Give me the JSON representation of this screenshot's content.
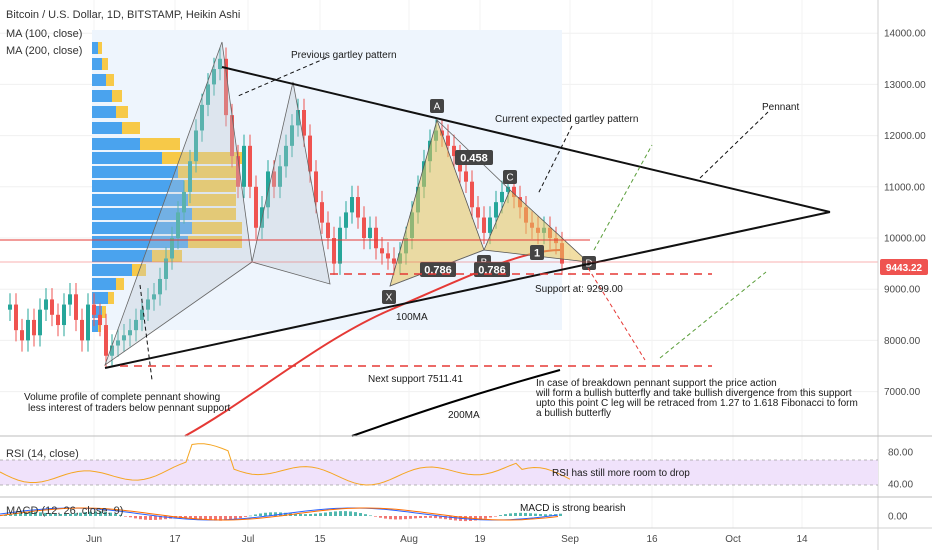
{
  "chart_data": [
    {
      "type": "candlestick",
      "title": "Bitcoin / U.S. Dollar, 1D, BITSTAMP, Heikin Ashi",
      "indicators": [
        "MA (100, close)",
        "MA (200, close)"
      ],
      "x_ticks": [
        "Jun",
        "17",
        "Jul",
        "15",
        "Aug",
        "19",
        "Sep",
        "16",
        "Oct",
        "14"
      ],
      "y_ticks": [
        "14000.00",
        "13000.00",
        "12000.00",
        "11000.00",
        "10000.00",
        "9000.00",
        "8000.00",
        "7000.00"
      ],
      "ylim": [
        6200,
        14600
      ],
      "current_price": 9443.22,
      "current_price_label": "9443.22",
      "key_prices": {
        "support": 9299.0,
        "next_support": 7511.41,
        "resistance_line": 9950,
        "pennant_apex": 10550
      },
      "patterns": {
        "previous_gartley": {
          "label": "Previous gartley pattern"
        },
        "current_gartley": {
          "label": "Current expected gartley pattern",
          "points": [
            {
              "name": "X",
              "price": 8700
            },
            {
              "name": "A",
              "price": 12350
            },
            {
              "name": "B",
              "price": 9800
            },
            {
              "name": "C",
              "price": 11000
            },
            {
              "name": "D",
              "price": 9550
            }
          ],
          "fib_labels": [
            "0.458",
            "0.786",
            "0.786",
            "1"
          ]
        }
      },
      "annotations": {
        "pennant": "Pennant",
        "volume_profile": [
          "Volume profile of complete pennant showing",
          "less interest of traders below pennant support"
        ],
        "support_at": "Support at: 9299.00",
        "next_support": "Next support 7511.41",
        "ma100": "100MA",
        "ma200": "200MA",
        "breakdown": [
          "In case of breakdown pennant support the price action",
          "will form a bullish butterfly and take bullish divergence from this support",
          "upto this point C leg will be retraced from 1.27 to 1.618 Fibonacci to form",
          "a bullish butterfly"
        ]
      },
      "colors": {
        "up": "#26a69a",
        "down": "#ef5350",
        "ma100": "#e53935",
        "ma200": "#000000",
        "pattern_fill": "#e8c25a",
        "label_bg": "#444444"
      }
    },
    {
      "type": "line",
      "title": "RSI (14, close)",
      "y_ticks": [
        "80.00",
        "40.00"
      ],
      "ylim": [
        20,
        100
      ],
      "band": [
        30,
        70
      ],
      "annotation": "RSI has still more room to drop",
      "colors": {
        "line": "#f5a623",
        "band": "#f0e2fb"
      }
    },
    {
      "type": "bar",
      "title": "MACD (12, 26, close, 9)",
      "y_ticks": [
        "0.00"
      ],
      "annotation": "MACD is strong bearish",
      "colors": {
        "macd": "#2962ff",
        "signal": "#ff6d00",
        "hist_up": "#26a69a",
        "hist_down": "#ef5350"
      }
    }
  ]
}
